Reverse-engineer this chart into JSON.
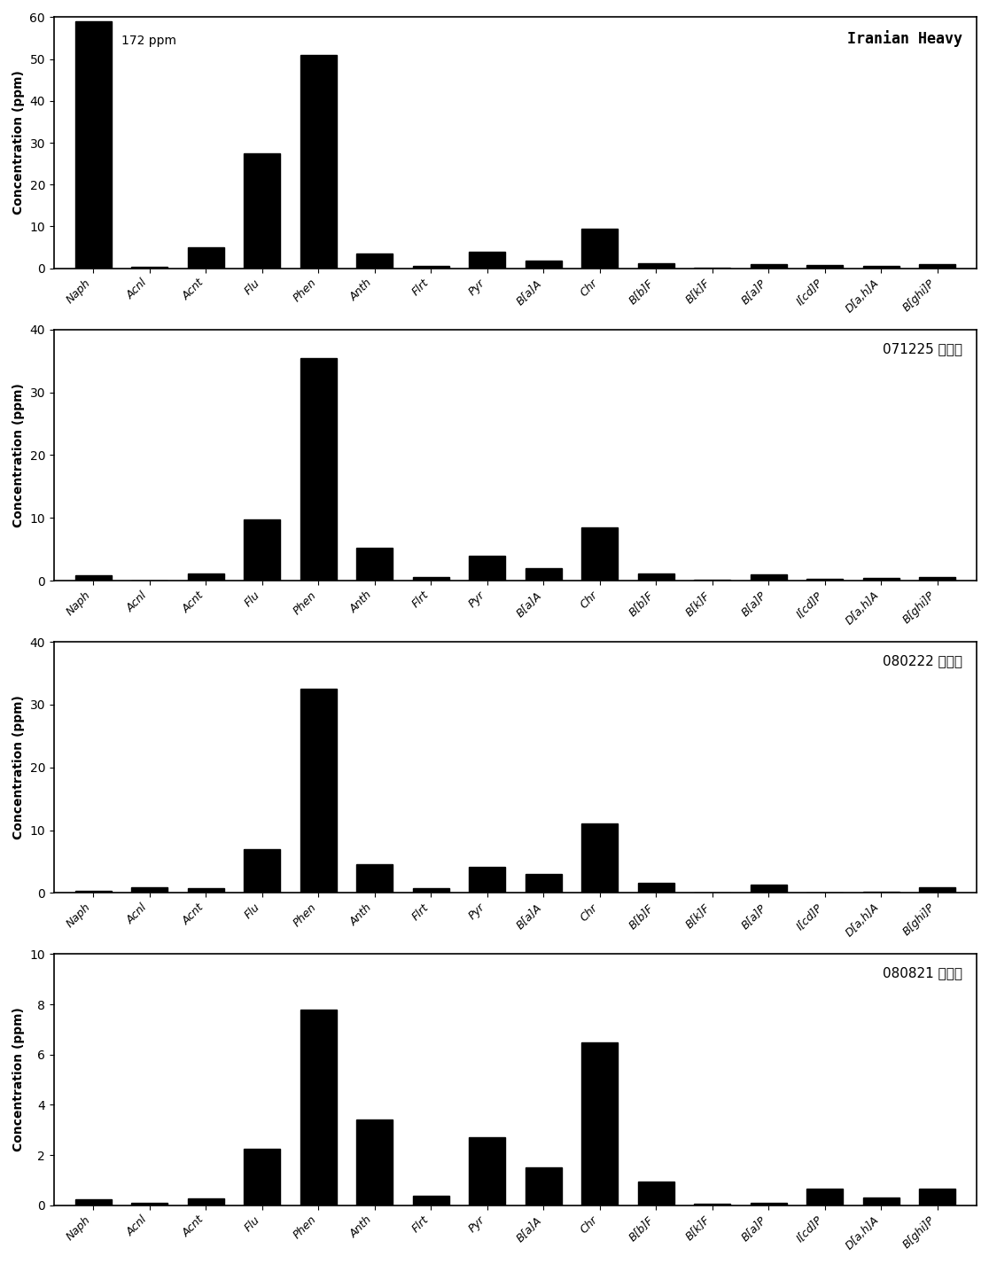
{
  "categories": [
    "Naph",
    "Acnl",
    "Acnt",
    "Flu",
    "Phen",
    "Anth",
    "Flrt",
    "Pyr",
    "B[a]A",
    "Chr",
    "B[b]F",
    "B[k]F",
    "B[a]P",
    "I[cd]P",
    "D[a,h]A",
    "B[ghi]P"
  ],
  "panels": [
    {
      "label": "Iranian Heavy",
      "label_style": "bold_mono",
      "annotation": "172 ppm",
      "ylim": [
        0,
        60
      ],
      "yticks": [
        0,
        10,
        20,
        30,
        40,
        50,
        60
      ],
      "values": [
        59.0,
        0.3,
        5.0,
        27.5,
        51.0,
        3.5,
        0.5,
        4.0,
        1.8,
        9.5,
        1.2,
        0.2,
        1.1,
        0.8,
        0.55,
        0.9
      ]
    },
    {
      "label": "071225 삽시도",
      "label_style": "normal",
      "annotation": null,
      "ylim": [
        0,
        40
      ],
      "yticks": [
        0,
        10,
        20,
        30,
        40
      ],
      "values": [
        0.8,
        0.05,
        1.1,
        9.8,
        35.5,
        5.2,
        0.6,
        4.0,
        2.0,
        8.5,
        1.1,
        0.2,
        1.0,
        0.3,
        0.4,
        0.6
      ]
    },
    {
      "label": "080222 삽시도",
      "label_style": "normal",
      "annotation": null,
      "ylim": [
        0,
        40
      ],
      "yticks": [
        0,
        10,
        20,
        30,
        40
      ],
      "values": [
        0.4,
        0.9,
        0.7,
        7.0,
        32.5,
        4.5,
        0.7,
        4.2,
        3.0,
        11.0,
        1.6,
        0.1,
        1.3,
        0.1,
        0.2,
        0.9
      ]
    },
    {
      "label": "080821 삽시도",
      "label_style": "normal",
      "annotation": null,
      "ylim": [
        0,
        10
      ],
      "yticks": [
        0,
        2,
        4,
        6,
        8,
        10
      ],
      "values": [
        0.22,
        0.08,
        0.28,
        2.25,
        7.8,
        3.4,
        0.38,
        2.7,
        1.5,
        6.5,
        0.95,
        0.05,
        0.08,
        0.65,
        0.3,
        0.65
      ]
    }
  ],
  "bar_color": "#000000",
  "ylabel": "Concentration (ppm)",
  "bar_width": 0.65,
  "background_color": "#ffffff"
}
